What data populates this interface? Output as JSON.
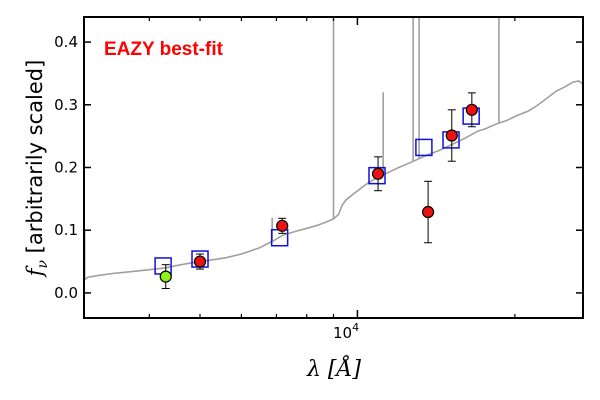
{
  "chart_data": {
    "type": "scatter",
    "title": "",
    "xlabel": "λ [Å]",
    "ylabel_symbol": "f",
    "ylabel_subscript": "ν",
    "ylabel_text": " [arbitrarily scaled]",
    "x_scale": "log",
    "xlim": [
      3000,
      27000
    ],
    "ylim": [
      -0.04,
      0.44
    ],
    "y_ticks": [
      0.0,
      0.1,
      0.2,
      0.3,
      0.4
    ],
    "y_tick_labels": [
      "0.0",
      "0.1",
      "0.2",
      "0.3",
      "0.4"
    ],
    "x_major_tick_value": 10000,
    "x_major_tick_label_base": "10",
    "x_major_tick_label_exp": "4",
    "x_minor_ticks": [
      4000,
      5000,
      6000,
      7000,
      8000,
      9000,
      20000
    ],
    "annotation": "EAZY best-fit",
    "annotation_color": "#ff0000",
    "template_color": "#a0a0a0",
    "model_color": "#1010dd",
    "series": [
      {
        "name": "template spectrum",
        "kind": "line",
        "points": [
          [
            3000,
            0.02
          ],
          [
            3050,
            0.025
          ],
          [
            3200,
            0.028
          ],
          [
            3400,
            0.031
          ],
          [
            3700,
            0.034
          ],
          [
            4000,
            0.037
          ],
          [
            4300,
            0.04
          ],
          [
            4600,
            0.045
          ],
          [
            4900,
            0.049
          ],
          [
            5200,
            0.052
          ],
          [
            5600,
            0.056
          ],
          [
            6000,
            0.062
          ],
          [
            6500,
            0.072
          ],
          [
            6900,
            0.083
          ],
          [
            7200,
            0.092
          ],
          [
            7600,
            0.098
          ],
          [
            8000,
            0.103
          ],
          [
            8400,
            0.108
          ],
          [
            8700,
            0.113
          ],
          [
            9000,
            0.118
          ],
          [
            9200,
            0.125
          ],
          [
            9350,
            0.14
          ],
          [
            9500,
            0.148
          ],
          [
            9800,
            0.157
          ],
          [
            10300,
            0.171
          ],
          [
            10800,
            0.182
          ],
          [
            11300,
            0.19
          ],
          [
            12000,
            0.2
          ],
          [
            12800,
            0.21
          ],
          [
            13500,
            0.219
          ],
          [
            14300,
            0.227
          ],
          [
            15000,
            0.235
          ],
          [
            16000,
            0.246
          ],
          [
            17000,
            0.258
          ],
          [
            17600,
            0.262
          ],
          [
            18500,
            0.27
          ],
          [
            19300,
            0.275
          ],
          [
            20200,
            0.283
          ],
          [
            21200,
            0.29
          ],
          [
            22000,
            0.298
          ],
          [
            23000,
            0.31
          ],
          [
            24000,
            0.322
          ],
          [
            25000,
            0.329
          ],
          [
            25800,
            0.336
          ],
          [
            26500,
            0.338
          ],
          [
            27000,
            0.333
          ]
        ]
      },
      {
        "name": "emission lines",
        "kind": "spikes",
        "lines": [
          [
            3010,
            0.1
          ],
          [
            6870,
            0.12
          ],
          [
            9000,
            0.44
          ],
          [
            11200,
            0.32
          ],
          [
            12780,
            0.44
          ],
          [
            13120,
            0.44
          ],
          [
            18650,
            0.44
          ]
        ]
      },
      {
        "name": "model photometry",
        "kind": "open-square",
        "points": [
          [
            4250,
            0.043
          ],
          [
            5000,
            0.054
          ],
          [
            7100,
            0.088
          ],
          [
            10900,
            0.187
          ],
          [
            13400,
            0.232
          ],
          [
            15100,
            0.244
          ],
          [
            16500,
            0.282
          ]
        ]
      },
      {
        "name": "observed photometry",
        "kind": "filled-circle-errorbar",
        "points": [
          {
            "x": 4300,
            "y": 0.026,
            "err": 0.019,
            "color": "#8ef01a"
          },
          {
            "x": 5000,
            "y": 0.05,
            "err": 0.012,
            "color": "#ee1111"
          },
          {
            "x": 7180,
            "y": 0.107,
            "err": 0.012,
            "color": "#ee1111"
          },
          {
            "x": 10950,
            "y": 0.19,
            "err": 0.027,
            "color": "#ee1111"
          },
          {
            "x": 13650,
            "y": 0.129,
            "err": 0.049,
            "color": "#ee1111"
          },
          {
            "x": 15150,
            "y": 0.251,
            "err": 0.041,
            "color": "#ee1111"
          },
          {
            "x": 16550,
            "y": 0.292,
            "err": 0.027,
            "color": "#ee1111"
          }
        ]
      }
    ]
  }
}
